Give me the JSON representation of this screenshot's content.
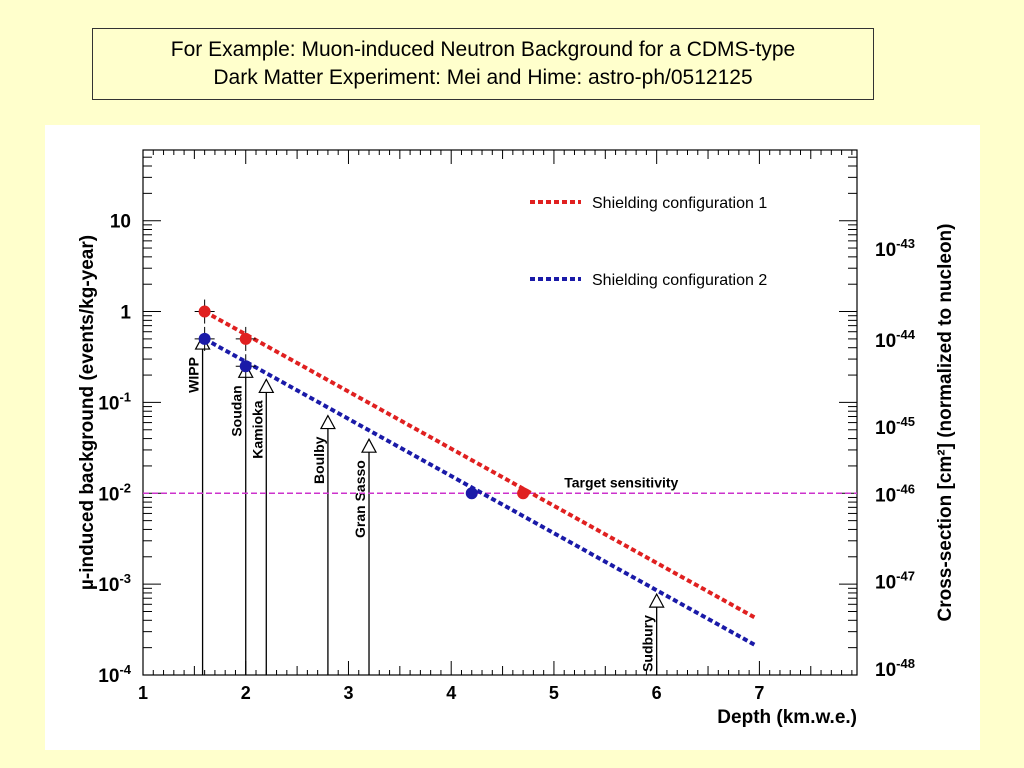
{
  "slide": {
    "title_line1": "For Example: Muon-induced Neutron Background for a CDMS-type",
    "title_line2": "Dark Matter Experiment: Mei and Hime: astro-ph/0512125"
  },
  "chart_data": {
    "type": "line",
    "xlabel": "Depth (km.w.e.)",
    "ylabel": "µ-induced background (events/kg-year)",
    "y2label": "Cross-section [cm²] (normalized to nucleon)",
    "xlim": [
      1,
      7.95
    ],
    "ylim": [
      0.0001,
      60
    ],
    "yscale": "log",
    "grid": false,
    "legend_placement": "top-right",
    "x_ticks": [
      1,
      2,
      3,
      4,
      5,
      6,
      7
    ],
    "y_ticks": [
      {
        "value": 10,
        "base": "10",
        "exp": ""
      },
      {
        "value": 1,
        "base": "1",
        "exp": ""
      },
      {
        "value": 0.1,
        "base": "10",
        "exp": "-1"
      },
      {
        "value": 0.01,
        "base": "10",
        "exp": "-2"
      },
      {
        "value": 0.001,
        "base": "10",
        "exp": "-3"
      },
      {
        "value": 0.0001,
        "base": "10",
        "exp": "-4"
      }
    ],
    "y2_ticks": [
      {
        "value": 5,
        "base": "10",
        "exp": "-43"
      },
      {
        "value": 0.5,
        "base": "10",
        "exp": "-44"
      },
      {
        "value": 0.055,
        "base": "10",
        "exp": "-45"
      },
      {
        "value": 0.01,
        "base": "10",
        "exp": "-46"
      },
      {
        "value": 0.0011,
        "base": "10",
        "exp": "-47"
      },
      {
        "value": 0.00012,
        "base": "10",
        "exp": "-48"
      }
    ],
    "series": [
      {
        "name": "Shielding configuration 1",
        "color": "#e02020",
        "x": [
          1.6,
          6.97
        ],
        "y": [
          1.0,
          0.00042
        ],
        "points": [
          {
            "x": 1.6,
            "y": 1.0
          },
          {
            "x": 2.0,
            "y": 0.5
          },
          {
            "x": 4.7,
            "y": 0.01
          }
        ]
      },
      {
        "name": "Shielding configuration 2",
        "color": "#1a1aa8",
        "x": [
          1.6,
          6.97
        ],
        "y": [
          0.5,
          0.00021
        ],
        "points": [
          {
            "x": 1.6,
            "y": 0.5
          },
          {
            "x": 2.0,
            "y": 0.25
          },
          {
            "x": 4.2,
            "y": 0.01
          }
        ]
      }
    ],
    "sites": [
      {
        "name": "WIPP",
        "x": 1.58,
        "y": 0.45
      },
      {
        "name": "Soudan",
        "x": 2.0,
        "y": 0.22
      },
      {
        "name": "Kamioka",
        "x": 2.2,
        "y": 0.15
      },
      {
        "name": "Boulby",
        "x": 2.8,
        "y": 0.06
      },
      {
        "name": "Gran Sasso",
        "x": 3.2,
        "y": 0.033
      },
      {
        "name": "Sudbury",
        "x": 6.0,
        "y": 0.00065
      }
    ],
    "target": {
      "label": "Target sensitivity",
      "y": 0.01,
      "color": "#cc33cc"
    }
  }
}
